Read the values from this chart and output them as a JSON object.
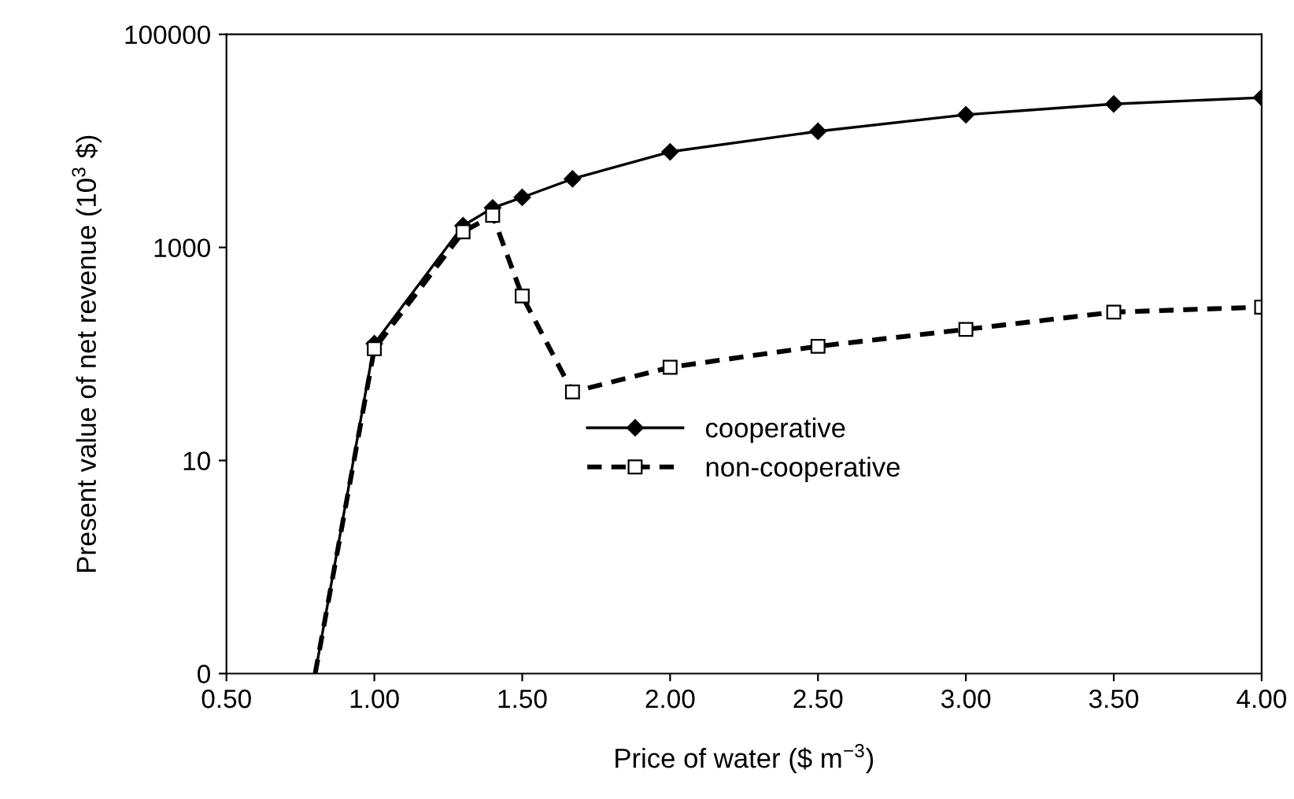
{
  "chart_data": {
    "type": "line",
    "xlabel": "Price of water ($ m$^{−3}$)",
    "ylabel": "Present value of net revenue (10$^{3}$ $)",
    "log": "y",
    "xlim": [
      0.5,
      4.0
    ],
    "xticks": [
      {
        "value": 0.5,
        "label": "0.50"
      },
      {
        "value": 1.0,
        "label": "1.00"
      },
      {
        "value": 1.5,
        "label": "1.50"
      },
      {
        "value": 2.0,
        "label": "2.00"
      },
      {
        "value": 2.5,
        "label": "2.50"
      },
      {
        "value": 3.0,
        "label": "3.00"
      },
      {
        "value": 3.5,
        "label": "3.50"
      },
      {
        "value": 4.0,
        "label": "4.00"
      }
    ],
    "ylim": [
      0.1,
      100000
    ],
    "yticks": [
      {
        "value": 0.1,
        "label": "0"
      },
      10,
      1000,
      100000
    ],
    "grid": false,
    "legend": "center",
    "x": [
      0.8,
      1.0,
      1.3,
      1.4,
      1.5,
      1.67,
      2.0,
      2.5,
      3.0,
      3.5,
      4.0
    ],
    "series": [
      {
        "name": "cooperative",
        "color": "#000000",
        "marker": "diamond",
        "line_style": "solid",
        "values": [
          0.1,
          125,
          1600,
          2350,
          2950,
          4400,
          7900,
          12300,
          17600,
          22200,
          25500
        ]
      },
      {
        "name": "non-cooperative",
        "color": "#000000",
        "marker": "square",
        "line_style": "dashed",
        "values": [
          0.1,
          112,
          1400,
          2000,
          350,
          44,
          75,
          118,
          170,
          247,
          275
        ]
      }
    ]
  }
}
